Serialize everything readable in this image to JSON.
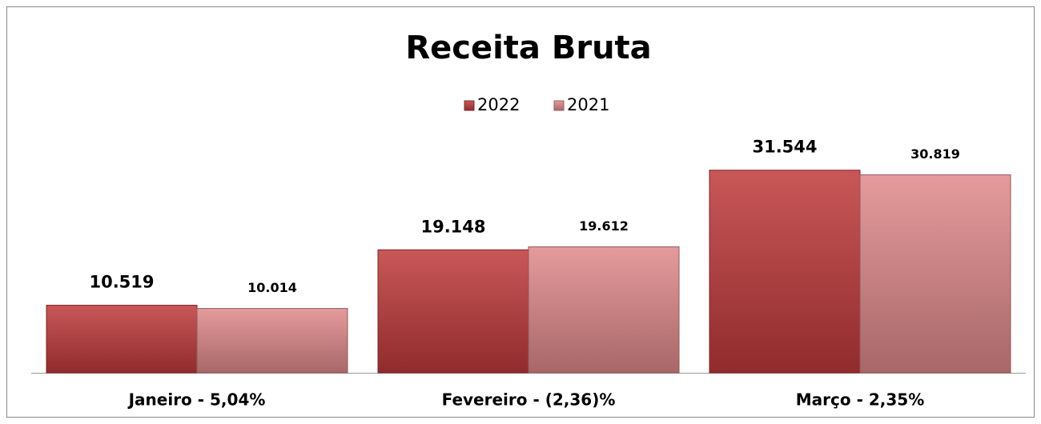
{
  "chart_data": {
    "type": "bar",
    "title": "Receita Bruta",
    "categories": [
      "Janeiro - 5,04%",
      "Fevereiro - (2,36)%",
      "Março - 2,35%"
    ],
    "series": [
      {
        "name": "2022",
        "color": "#c0393b",
        "values": [
          10519,
          19148,
          31544
        ],
        "value_labels": [
          "10.519",
          "19.148",
          "31.544"
        ]
      },
      {
        "name": "2021",
        "color": "#e0898b",
        "values": [
          10014,
          19612,
          30819
        ],
        "value_labels": [
          "10.014",
          "19.612",
          "30.819"
        ]
      }
    ],
    "ylim": [
      0,
      35000
    ],
    "legend": "top"
  }
}
